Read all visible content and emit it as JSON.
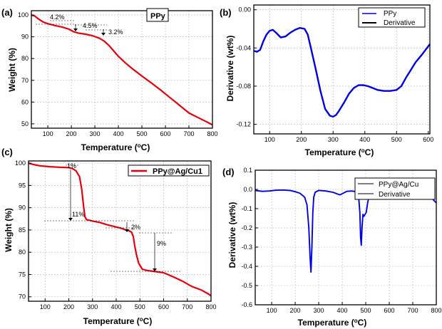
{
  "chart_data": [
    {
      "panel_label": "(a)",
      "type": "line",
      "xlabel": "Temperature (°C)",
      "ylabel": "Weight (%)",
      "xlim": [
        30,
        800
      ],
      "ylim": [
        48,
        102
      ],
      "xticks": [
        100,
        200,
        300,
        400,
        500,
        600,
        700,
        800
      ],
      "yticks": [
        50,
        60,
        70,
        80,
        90,
        100
      ],
      "grid": true,
      "legend_box": "PPy",
      "series": [
        {
          "color": "#e8000b",
          "x": [
            30,
            45,
            60,
            80,
            100,
            130,
            160,
            190,
            210,
            230,
            260,
            290,
            320,
            340,
            360,
            380,
            400,
            430,
            460,
            500,
            540,
            580,
            620,
            660,
            700,
            740,
            770,
            800
          ],
          "y": [
            100,
            99.5,
            98.2,
            96.8,
            96,
            95.2,
            94.5,
            93.5,
            92.3,
            91.7,
            91.2,
            90.5,
            89.3,
            88,
            86,
            83.5,
            81,
            78,
            75.3,
            72,
            68.8,
            65.5,
            62,
            58.5,
            55,
            52.8,
            51.2,
            49.5
          ]
        }
      ],
      "annotations": [
        "4.2%",
        "4.5%",
        "3.2%"
      ]
    },
    {
      "panel_label": "(b)",
      "type": "line",
      "xlabel": "Temperature (°C)",
      "ylabel": "Derivative (wt%)",
      "xlim": [
        50,
        605
      ],
      "ylim": [
        -0.13,
        0.005
      ],
      "xticks": [
        100,
        200,
        300,
        400,
        500,
        600
      ],
      "yticks": [
        0.0,
        -0.04,
        -0.08,
        -0.12
      ],
      "ytick_labels": [
        "0.00",
        "-0.04",
        "-0.08",
        "-0.12"
      ],
      "grid": true,
      "legend": [
        "PPy",
        "Derivative"
      ],
      "series": [
        {
          "name": "PPy",
          "color": "#0000e6",
          "x": [
            50,
            60,
            70,
            80,
            90,
            100,
            110,
            120,
            135,
            150,
            165,
            180,
            195,
            210,
            220,
            230,
            245,
            260,
            275,
            290,
            300,
            310,
            320,
            335,
            350,
            365,
            380,
            395,
            410,
            425,
            440,
            460,
            480,
            500,
            515,
            530,
            545,
            560,
            580,
            605
          ],
          "y": [
            -0.043,
            -0.044,
            -0.042,
            -0.033,
            -0.026,
            -0.022,
            -0.021,
            -0.024,
            -0.029,
            -0.028,
            -0.024,
            -0.021,
            -0.019,
            -0.02,
            -0.026,
            -0.04,
            -0.062,
            -0.085,
            -0.104,
            -0.111,
            -0.112,
            -0.11,
            -0.105,
            -0.097,
            -0.088,
            -0.082,
            -0.079,
            -0.079,
            -0.08,
            -0.082,
            -0.084,
            -0.085,
            -0.085,
            -0.084,
            -0.08,
            -0.071,
            -0.063,
            -0.055,
            -0.047,
            -0.036
          ]
        }
      ]
    },
    {
      "panel_label": "(c)",
      "type": "line",
      "xlabel": "Temperature (°C)",
      "ylabel": "Weight (%)",
      "xlim": [
        30,
        800
      ],
      "ylim": [
        69,
        100.5
      ],
      "xticks": [
        100,
        200,
        300,
        400,
        500,
        600,
        700,
        800
      ],
      "yticks": [
        70,
        75,
        80,
        85,
        90,
        95,
        100
      ],
      "grid": true,
      "legend": [
        "PPy@Ag/Cu1"
      ],
      "series": [
        {
          "name": "PPy@Ag/Cu1",
          "color": "#e8000b",
          "x": [
            30,
            50,
            80,
            120,
            160,
            200,
            215,
            230,
            245,
            255,
            262,
            268,
            275,
            285,
            300,
            330,
            360,
            390,
            420,
            440,
            455,
            465,
            472,
            478,
            485,
            495,
            510,
            530,
            560,
            600,
            640,
            680,
            720,
            760,
            790,
            800
          ],
          "y": [
            100,
            99.7,
            99.4,
            99.2,
            99.1,
            99,
            98.8,
            98.3,
            97,
            94,
            90.5,
            88,
            87.3,
            87.2,
            87,
            86.7,
            86.2,
            85.8,
            85.4,
            85,
            84.8,
            84.5,
            83.5,
            81.5,
            79.5,
            77.5,
            76.2,
            75.9,
            75.7,
            75.4,
            74.5,
            73.5,
            72.3,
            71.5,
            70.6,
            70.2
          ]
        }
      ],
      "annotations": [
        "1%",
        "11%",
        "2%",
        "9%"
      ]
    },
    {
      "panel_label": "(d)",
      "type": "line",
      "xlabel": "Temperature (°C)",
      "ylabel": "Derivative (wt%)",
      "xlim": [
        30,
        800
      ],
      "ylim": [
        -0.6,
        0.1
      ],
      "xticks": [
        100,
        200,
        300,
        400,
        500,
        600,
        700,
        800
      ],
      "yticks": [
        0.1,
        0.0,
        -0.1,
        -0.2,
        -0.3,
        -0.4,
        -0.5,
        -0.6
      ],
      "ytick_labels": [
        "0.1",
        "0.0",
        "-0.1",
        "-0.2",
        "-0.3",
        "-0.4",
        "-0.5",
        "-0.6"
      ],
      "grid": true,
      "legend": [
        "PPy@Ag/Cu",
        "Derivative"
      ],
      "series": [
        {
          "name": "PPy@Ag/Cu",
          "color": "#0000e6",
          "x": [
            30,
            60,
            90,
            120,
            150,
            180,
            200,
            220,
            240,
            250,
            258,
            263,
            267,
            271,
            275,
            279,
            285,
            300,
            330,
            360,
            390,
            420,
            440,
            460,
            470,
            475,
            478,
            481,
            484,
            488,
            492,
            497,
            502,
            508,
            515,
            530,
            560,
            600,
            640,
            680,
            700,
            715,
            730,
            745,
            760,
            780,
            800
          ],
          "y": [
            -0.005,
            -0.01,
            -0.008,
            -0.004,
            -0.003,
            -0.006,
            -0.012,
            -0.02,
            -0.04,
            -0.08,
            -0.2,
            -0.35,
            -0.43,
            -0.3,
            -0.12,
            -0.04,
            -0.015,
            -0.005,
            -0.008,
            -0.015,
            -0.028,
            -0.01,
            -0.008,
            -0.012,
            -0.04,
            -0.12,
            -0.25,
            -0.29,
            -0.2,
            -0.13,
            -0.14,
            -0.13,
            -0.12,
            -0.07,
            -0.03,
            -0.01,
            -0.005,
            -0.008,
            -0.015,
            -0.028,
            -0.045,
            -0.02,
            -0.01,
            -0.015,
            -0.03,
            -0.045,
            -0.07
          ]
        }
      ]
    }
  ],
  "panel_a": {
    "label": "(a)",
    "xlabel_text": "Temperature (",
    "xlabel_unit": "C)",
    "ylabel": "Weight (%)",
    "legend": "PPy",
    "ann1": "4.2%",
    "ann2": "4.5%",
    "ann3": "3.2%"
  },
  "panel_b": {
    "label": "(b)",
    "xlabel_text": "Temperature (",
    "xlabel_unit": "C)",
    "ylabel": "Derivative (wt%)",
    "legend1": "PPy",
    "legend2": "Derivative"
  },
  "panel_c": {
    "label": "(c)",
    "xlabel_text": "Temperature (",
    "xlabel_unit": "C)",
    "ylabel": "Weight (%)",
    "legend": "PPy@Ag/Cu1",
    "ann1": "1%",
    "ann2": "11%",
    "ann3": "2%",
    "ann4": "9%"
  },
  "panel_d": {
    "label": "(d)",
    "xlabel_text": "Temperature (",
    "xlabel_unit": "C)",
    "ylabel": "Derivative (wt%)",
    "legend1": "PPy@Ag/Cu",
    "legend2": "Derivative"
  }
}
